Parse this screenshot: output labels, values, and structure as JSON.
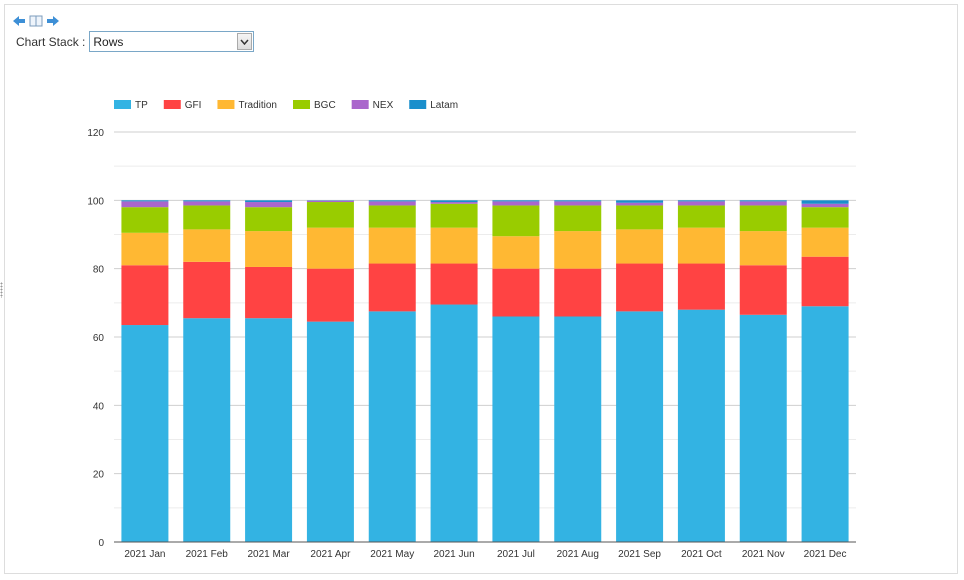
{
  "toolbar": {
    "icons": [
      "arrow-left-icon",
      "book-icon",
      "arrow-right-icon"
    ]
  },
  "controls": {
    "stack_label": "Chart Stack :",
    "stack_value": "Rows"
  },
  "colors": {
    "TP": "#33b3e3",
    "GFI": "#ff4343",
    "Tradition": "#ffb833",
    "BGC": "#99cc00",
    "NEX": "#aa66cc",
    "Latam": "#1a8fcc"
  },
  "chart_data": {
    "type": "bar",
    "stacked": true,
    "title": "",
    "xlabel": "",
    "ylabel": "",
    "ylim": [
      0,
      120
    ],
    "yticks": [
      0,
      20,
      40,
      60,
      80,
      100,
      120
    ],
    "grid": true,
    "legend_position": "top-left",
    "categories": [
      "2021 Jan",
      "2021 Feb",
      "2021 Mar",
      "2021 Apr",
      "2021 May",
      "2021 Jun",
      "2021 Jul",
      "2021 Aug",
      "2021 Sep",
      "2021 Oct",
      "2021 Nov",
      "2021 Dec"
    ],
    "series": [
      {
        "name": "TP",
        "values": [
          63.5,
          65.5,
          65.5,
          64.5,
          67.5,
          69.5,
          66.0,
          66.0,
          67.5,
          68.0,
          66.5,
          69.0
        ]
      },
      {
        "name": "GFI",
        "values": [
          17.5,
          16.5,
          15.0,
          15.5,
          14.0,
          12.0,
          14.0,
          14.0,
          14.0,
          13.5,
          14.5,
          14.5
        ]
      },
      {
        "name": "Tradition",
        "values": [
          9.5,
          9.5,
          10.5,
          12.0,
          10.5,
          10.5,
          9.5,
          11.0,
          10.0,
          10.5,
          10.0,
          8.5
        ]
      },
      {
        "name": "BGC",
        "values": [
          7.5,
          7.0,
          7.0,
          7.5,
          6.5,
          7.0,
          9.0,
          7.5,
          7.0,
          6.5,
          7.5,
          6.0
        ]
      },
      {
        "name": "NEX",
        "values": [
          1.7,
          1.2,
          1.5,
          0.4,
          1.2,
          0.5,
          1.2,
          1.2,
          0.8,
          1.2,
          1.2,
          1.0
        ]
      },
      {
        "name": "Latam",
        "values": [
          0.3,
          0.3,
          0.5,
          0.1,
          0.3,
          0.5,
          0.3,
          0.3,
          0.7,
          0.3,
          0.3,
          1.0
        ]
      }
    ]
  }
}
